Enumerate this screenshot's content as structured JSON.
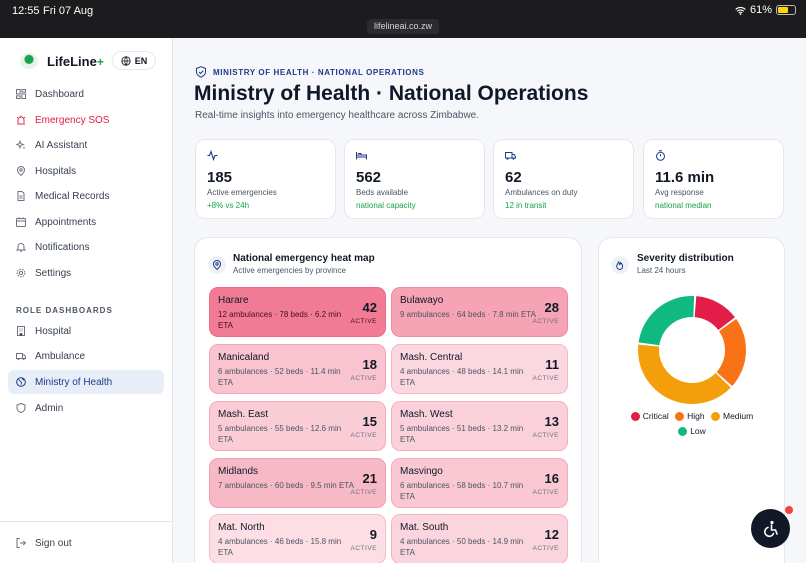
{
  "status_bar": {
    "time": "12:55",
    "date": "Fri 07 Aug",
    "battery": "61%",
    "battery_level": 0.61,
    "url": "lifelineai.co.zw"
  },
  "brand": {
    "name": "LifeLine",
    "plus": "+",
    "language": "EN"
  },
  "nav": {
    "main": [
      {
        "label": "Dashboard",
        "icon": "dashboard-icon"
      },
      {
        "label": "Emergency SOS",
        "icon": "sos-siren-icon"
      },
      {
        "label": "AI Assistant",
        "icon": "sparkles-icon"
      },
      {
        "label": "Hospitals",
        "icon": "map-pin-icon"
      },
      {
        "label": "Medical Records",
        "icon": "document-icon"
      },
      {
        "label": "Appointments",
        "icon": "calendar-icon"
      },
      {
        "label": "Notifications",
        "icon": "bell-icon"
      },
      {
        "label": "Settings",
        "icon": "gear-icon"
      }
    ],
    "section_label": "ROLE DASHBOARDS",
    "roles": [
      {
        "label": "Hospital",
        "icon": "building-icon"
      },
      {
        "label": "Ambulance",
        "icon": "ambulance-icon"
      },
      {
        "label": "Ministry of Health",
        "icon": "globe-icon"
      },
      {
        "label": "Admin",
        "icon": "shield-icon"
      }
    ],
    "sign_out": "Sign out"
  },
  "header": {
    "eyebrow": "MINISTRY OF HEALTH · NATIONAL OPERATIONS",
    "title": "Ministry of Health · National Operations",
    "subtitle": "Real-time insights into emergency healthcare across Zimbabwe."
  },
  "kpis": [
    {
      "value": "185",
      "label": "Active emergencies",
      "delta": "+8% vs 24h",
      "icon": "activity-icon"
    },
    {
      "value": "562",
      "label": "Beds available",
      "delta": "national capacity",
      "icon": "bed-icon"
    },
    {
      "value": "62",
      "label": "Ambulances on duty",
      "delta": "12 in transit",
      "icon": "truck-icon"
    },
    {
      "value": "11.6 min",
      "label": "Avg response",
      "delta": "national median",
      "icon": "timer-icon"
    }
  ],
  "heatmap": {
    "title": "National emergency heat map",
    "subtitle": "Active emergencies by province",
    "active_label": "ACTIVE",
    "provinces": [
      {
        "name": "Harare",
        "details": "12 ambulances · 78 beds · 6.2 min ETA",
        "count": "42"
      },
      {
        "name": "Bulawayo",
        "details": "9 ambulances · 64 beds · 7.8 min ETA",
        "count": "28"
      },
      {
        "name": "Manicaland",
        "details": "6 ambulances · 52 beds · 11.4 min ETA",
        "count": "18"
      },
      {
        "name": "Mash. Central",
        "details": "4 ambulances · 48 beds · 14.1 min ETA",
        "count": "11"
      },
      {
        "name": "Mash. East",
        "details": "5 ambulances · 55 beds · 12.6 min ETA",
        "count": "15"
      },
      {
        "name": "Mash. West",
        "details": "5 ambulances · 51 beds · 13.2 min ETA",
        "count": "13"
      },
      {
        "name": "Midlands",
        "details": "7 ambulances · 60 beds · 9.5 min ETA",
        "count": "21"
      },
      {
        "name": "Masvingo",
        "details": "6 ambulances · 58 beds · 10.7 min ETA",
        "count": "16"
      },
      {
        "name": "Mat. North",
        "details": "4 ambulances · 46 beds · 15.8 min ETA",
        "count": "9"
      },
      {
        "name": "Mat. South",
        "details": "4 ambulances · 50 beds · 14.9 min ETA",
        "count": "12"
      }
    ]
  },
  "severity": {
    "title": "Severity distribution",
    "subtitle": "Last 24 hours",
    "segments": [
      {
        "name": "Critical",
        "value": 14,
        "color": "#e11d48"
      },
      {
        "name": "High",
        "value": 22,
        "color": "#f97316"
      },
      {
        "name": "Medium",
        "value": 40,
        "color": "#f59e0b"
      },
      {
        "name": "Low",
        "value": 24,
        "color": "#10b981"
      }
    ]
  }
}
